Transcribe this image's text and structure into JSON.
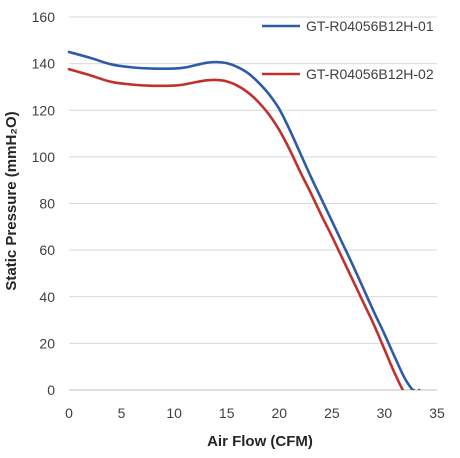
{
  "chart_data": {
    "type": "line",
    "title": "",
    "xlabel": "Air Flow (CFM)",
    "ylabel": "Static Pressure (mmH₂O)",
    "xlim": [
      0,
      35
    ],
    "ylim": [
      0,
      160
    ],
    "xticks": [
      0,
      5,
      10,
      15,
      20,
      25,
      30,
      35
    ],
    "yticks": [
      0,
      20,
      40,
      60,
      80,
      100,
      120,
      140,
      160
    ],
    "grid": "horizontal",
    "legend_position": "top-right",
    "series": [
      {
        "name": "GT-R04056B12H-01",
        "color": "#2e5aa8",
        "x": [
          0,
          2,
          4,
          6,
          8,
          10,
          11,
          12,
          13,
          14,
          15,
          16,
          17,
          18,
          19,
          20,
          21,
          22,
          23,
          24,
          25,
          26,
          27,
          28,
          29,
          30,
          31,
          32,
          33,
          33.3
        ],
        "y": [
          145,
          142.5,
          139.7,
          138.4,
          137.9,
          137.9,
          138.3,
          139.3,
          140.3,
          140.7,
          140.2,
          138.6,
          136.0,
          132.0,
          127.0,
          120.5,
          111.5,
          101.5,
          91.5,
          82.0,
          72.5,
          63.0,
          53.5,
          43.5,
          33.5,
          24.0,
          14.0,
          4.5,
          -1.5,
          0
        ]
      },
      {
        "name": "GT-R04056B12H-02",
        "color": "#c0312e",
        "x": [
          0,
          2,
          4,
          6,
          8,
          10,
          11,
          12,
          13,
          14,
          15,
          16,
          17,
          18,
          19,
          20,
          21,
          22,
          23,
          24,
          25,
          26,
          27,
          28,
          29,
          30,
          31,
          32,
          32.8
        ],
        "y": [
          137.6,
          135.0,
          132.2,
          131.0,
          130.5,
          130.6,
          131.1,
          132.0,
          132.8,
          133.0,
          132.4,
          130.6,
          127.7,
          123.6,
          118.3,
          111.5,
          103.0,
          93.5,
          84.5,
          75.0,
          66.0,
          56.5,
          47.0,
          37.5,
          28.0,
          17.5,
          7.0,
          -1.5,
          0
        ]
      }
    ]
  }
}
